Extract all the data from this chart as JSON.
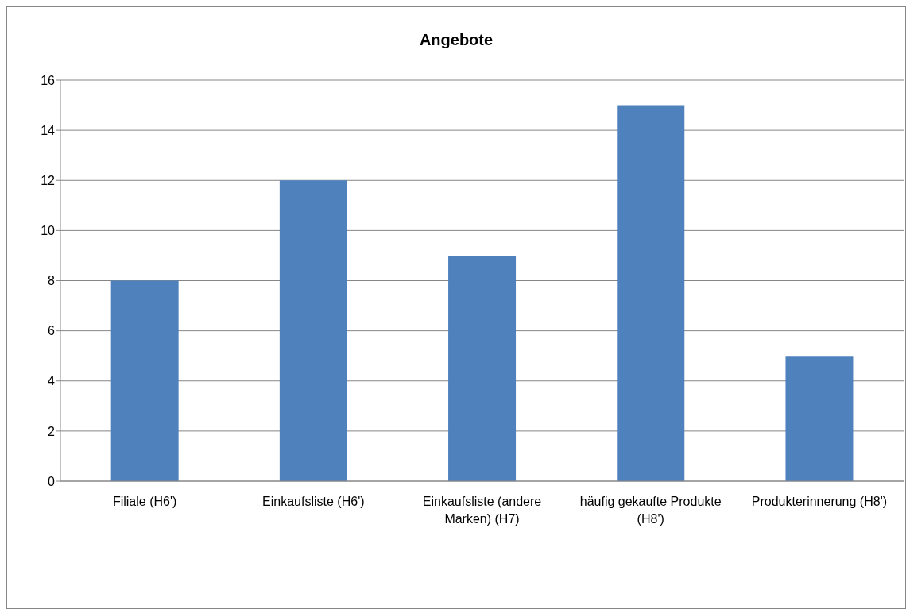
{
  "chart_data": {
    "type": "bar",
    "title": "Angebote",
    "categories": [
      "Filiale (H6')",
      "Einkaufsliste (H6')",
      "Einkaufsliste (andere Marken) (H7)",
      "häufig gekaufte Produkte (H8')",
      "Produkterinnerung (H8')"
    ],
    "values": [
      8,
      12,
      9,
      15,
      5
    ],
    "color": "#4f81bd",
    "ylim": [
      0,
      16
    ],
    "yticks": [
      0,
      2,
      4,
      6,
      8,
      10,
      12,
      14,
      16
    ],
    "grid": "y",
    "legend": false
  }
}
